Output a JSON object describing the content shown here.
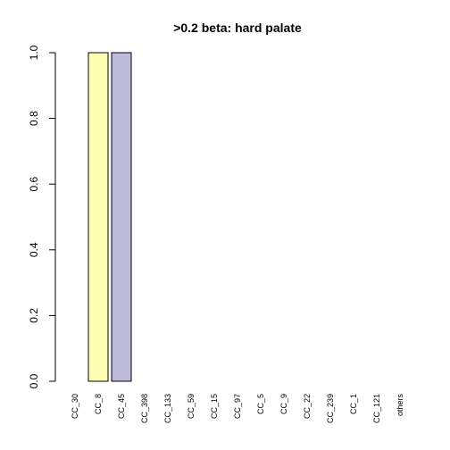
{
  "chart_data": {
    "type": "bar",
    "title": ">0.2 beta:  hard palate",
    "xlabel": "",
    "ylabel": "",
    "ylim": [
      0,
      1
    ],
    "y_ticks": [
      "0.0",
      "0.2",
      "0.4",
      "0.6",
      "0.8",
      "1.0"
    ],
    "y_tick_values": [
      0,
      0.2,
      0.4,
      0.6,
      0.8,
      1.0
    ],
    "grid": false,
    "legend": "none",
    "categories": [
      "CC_30",
      "CC_8",
      "CC_45",
      "CC_398",
      "CC_133",
      "CC_59",
      "CC_15",
      "CC_97",
      "CC_5",
      "CC_9",
      "CC_22",
      "CC_239",
      "CC_1",
      "CC_121",
      "others"
    ],
    "values": [
      0,
      1,
      1,
      0,
      0,
      0,
      0,
      0,
      0,
      0,
      0,
      0,
      0,
      0,
      0
    ],
    "colors": [
      "#8DD3C7",
      "#FFFFB3",
      "#BEBADA",
      "#FB8072",
      "#80B1D3",
      "#FDB462",
      "#B3DE69",
      "#FCCDE5",
      "#D9D9D9",
      "#BC80BD",
      "#CCEBC5",
      "#FFED6F",
      "#8DD3C7",
      "#FFFFB3",
      "#BEBADA"
    ]
  }
}
